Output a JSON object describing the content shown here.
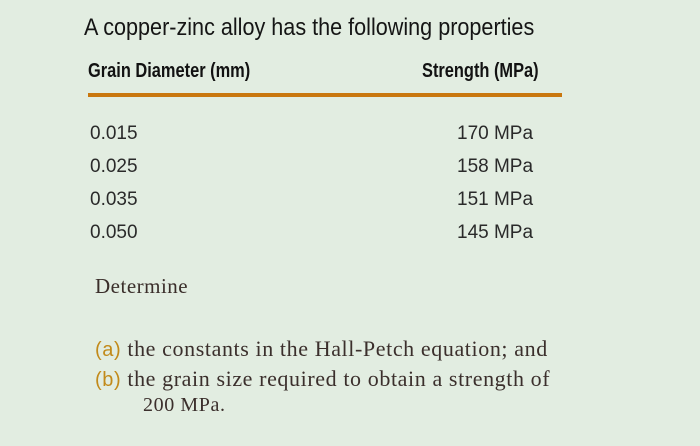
{
  "title": "A copper-zinc alloy has the following properties",
  "table": {
    "headers": [
      "Grain Diameter (mm)",
      "Strength (MPa)"
    ],
    "rows": [
      {
        "diameter": "0.015",
        "strength": "170 MPa"
      },
      {
        "diameter": "0.025",
        "strength": "158 MPa"
      },
      {
        "diameter": "0.035",
        "strength": "151 MPa"
      },
      {
        "diameter": "0.050",
        "strength": "145 MPa"
      }
    ],
    "rule_color": "#c9770e"
  },
  "determine": "Determine",
  "questions": [
    {
      "label": "(a)",
      "text": "the constants in the Hall-Petch equation; and"
    },
    {
      "label": "(b)",
      "text": "the grain size required to obtain a strength of",
      "continuation": "200 MPa."
    }
  ]
}
